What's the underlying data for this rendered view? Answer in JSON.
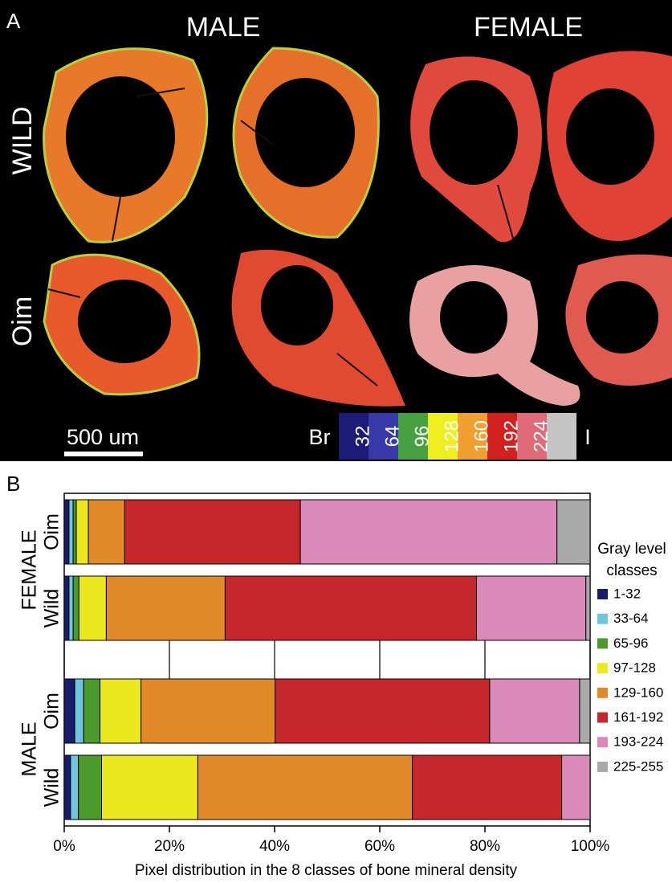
{
  "panel_a": {
    "label": "A",
    "columns": [
      "MALE",
      "FEMALE"
    ],
    "rows": [
      "WILD",
      "Oim"
    ],
    "scale_bar": "500 um",
    "colorbar_start": "Br",
    "colorbar_labels": [
      "32",
      "64",
      "96",
      "128",
      "160",
      "192",
      "224"
    ],
    "colorbar_end": "I"
  },
  "chart_data": {
    "type": "stacked-barh",
    "panel_label": "B",
    "groups": [
      "FEMALE",
      "MALE"
    ],
    "categories": [
      "Oim",
      "Wild",
      "Oim",
      "Wild"
    ],
    "xlabel": "Pixel distribution in the 8 classes of bone mineral density",
    "xlim": [
      0,
      100
    ],
    "xticks": [
      {
        "value": 0,
        "label": "0%"
      },
      {
        "value": 20,
        "label": "20%"
      },
      {
        "value": 40,
        "label": "40%"
      },
      {
        "value": 60,
        "label": "60%"
      },
      {
        "value": 80,
        "label": "80%"
      },
      {
        "value": 100,
        "label": "100%"
      }
    ],
    "grid": true,
    "legend_title": "Gray level classes",
    "legend_position": "right",
    "series": [
      {
        "name": "1-32",
        "color": "#1b1b6b",
        "values": [
          0.9,
          0.9,
          2.0,
          1.2
        ]
      },
      {
        "name": "33-64",
        "color": "#6fc4de",
        "values": [
          0.8,
          0.8,
          1.7,
          1.5
        ]
      },
      {
        "name": "65-96",
        "color": "#4c9a2c",
        "values": [
          0.6,
          1.1,
          3.1,
          4.4
        ]
      },
      {
        "name": "97-128",
        "color": "#ece81e",
        "values": [
          2.3,
          5.2,
          7.8,
          18.3
        ]
      },
      {
        "name": "129-160",
        "color": "#e08a2a",
        "values": [
          6.9,
          22.6,
          25.5,
          40.8
        ]
      },
      {
        "name": "161-192",
        "color": "#c6272a",
        "values": [
          33.4,
          47.8,
          40.8,
          28.4
        ]
      },
      {
        "name": "193-224",
        "color": "#d98ab8",
        "values": [
          48.8,
          20.8,
          17.1,
          5.4
        ]
      },
      {
        "name": "225-255",
        "color": "#a9a9a9",
        "values": [
          6.3,
          0.8,
          2.0,
          0
        ]
      }
    ]
  }
}
